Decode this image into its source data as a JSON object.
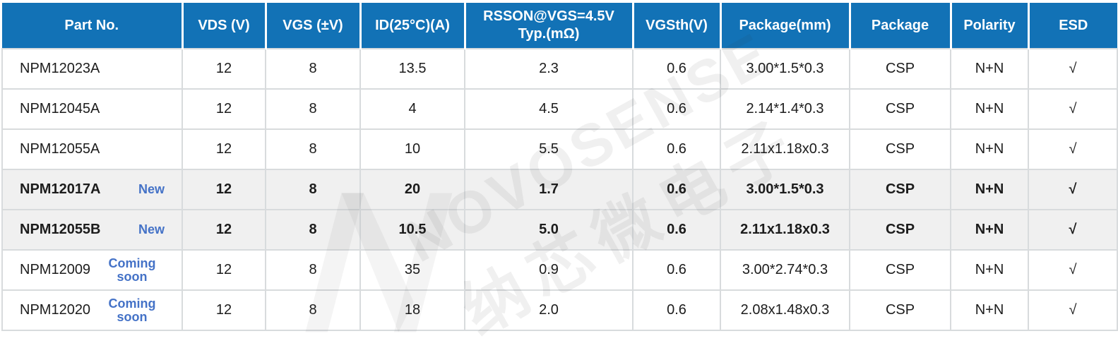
{
  "table": {
    "columns": [
      {
        "key": "part",
        "label": "Part No."
      },
      {
        "key": "vds",
        "label": "VDS (V)"
      },
      {
        "key": "vgs",
        "label": "VGS (±V)"
      },
      {
        "key": "id",
        "label": "ID(25°C)(A)"
      },
      {
        "key": "rsson",
        "label": "RSSON@VGS=4.5V\nTyp.(mΩ)"
      },
      {
        "key": "vgsth",
        "label": "VGSth(V)"
      },
      {
        "key": "package_mm",
        "label": "Package(mm)"
      },
      {
        "key": "package",
        "label": "Package"
      },
      {
        "key": "polarity",
        "label": "Polarity"
      },
      {
        "key": "esd",
        "label": "ESD"
      }
    ],
    "rows": [
      {
        "part": "NPM12023A",
        "tag": "",
        "vds": "12",
        "vgs": "8",
        "id": "13.5",
        "rsson": "2.3",
        "vgsth": "0.6",
        "package_mm": "3.00*1.5*0.3",
        "package": "CSP",
        "polarity": "N+N",
        "esd": "√"
      },
      {
        "part": "NPM12045A",
        "tag": "",
        "vds": "12",
        "vgs": "8",
        "id": "4",
        "rsson": "4.5",
        "vgsth": "0.6",
        "package_mm": "2.14*1.4*0.3",
        "package": "CSP",
        "polarity": "N+N",
        "esd": "√"
      },
      {
        "part": "NPM12055A",
        "tag": "",
        "vds": "12",
        "vgs": "8",
        "id": "10",
        "rsson": "5.5",
        "vgsth": "0.6",
        "package_mm": "2.11x1.18x0.3",
        "package": "CSP",
        "polarity": "N+N",
        "esd": "√"
      },
      {
        "part": "NPM12017A",
        "tag": "New",
        "vds": "12",
        "vgs": "8",
        "id": "20",
        "rsson": "1.7",
        "vgsth": "0.6",
        "package_mm": "3.00*1.5*0.3",
        "package": "CSP",
        "polarity": "N+N",
        "esd": "√"
      },
      {
        "part": "NPM12055B",
        "tag": "New",
        "vds": "12",
        "vgs": "8",
        "id": "10.5",
        "rsson": "5.0",
        "vgsth": "0.6",
        "package_mm": "2.11x1.18x0.3",
        "package": "CSP",
        "polarity": "N+N",
        "esd": "√"
      },
      {
        "part": "NPM12009",
        "tag": "Coming soon",
        "vds": "12",
        "vgs": "8",
        "id": "35",
        "rsson": "0.9",
        "vgsth": "0.6",
        "package_mm": "3.00*2.74*0.3",
        "package": "CSP",
        "polarity": "N+N",
        "esd": "√"
      },
      {
        "part": "NPM12020",
        "tag": "Coming soon",
        "vds": "12",
        "vgs": "8",
        "id": "18",
        "rsson": "2.0",
        "vgsth": "0.6",
        "package_mm": "2.08x1.48x0.3",
        "package": "CSP",
        "polarity": "N+N",
        "esd": "√"
      }
    ]
  },
  "watermark": {
    "brand": "NOVOSENSE",
    "brand_cn": "纳芯微电子",
    "logo_icon": "novosense-n-logo"
  },
  "colors": {
    "header_bg": "#1272B6",
    "tag_blue": "#4472C7",
    "highlight_bg": "#F0F0F0",
    "border": "#D8DBDD"
  }
}
